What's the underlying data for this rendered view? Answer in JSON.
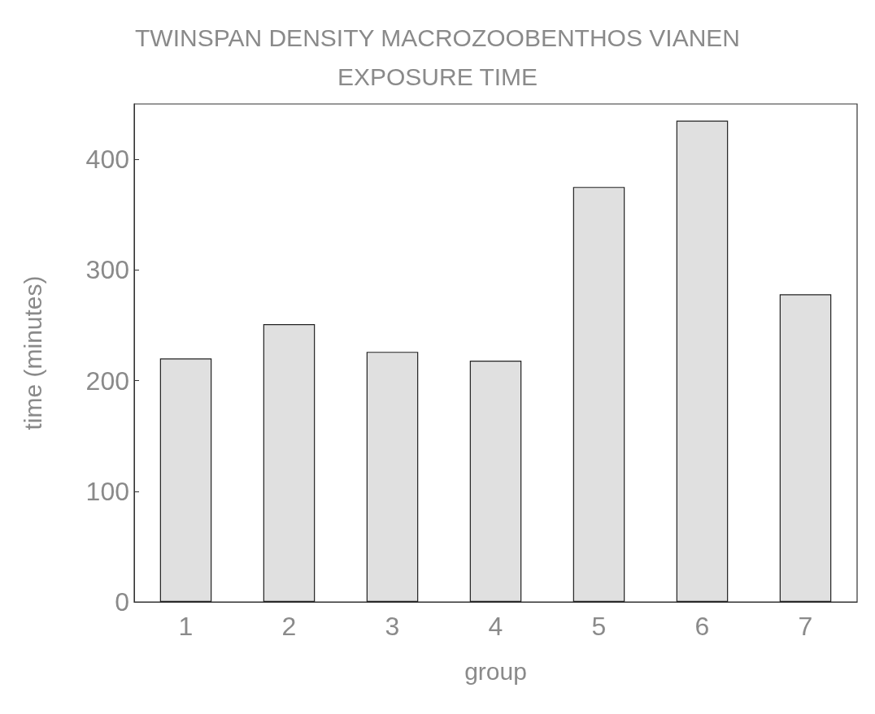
{
  "chart_data": {
    "type": "bar",
    "title": "TWINSPAN DENSITY MACROZOOBENTHOS VIANEN",
    "subtitle": "EXPOSURE TIME",
    "xlabel": "group",
    "ylabel": "time (minutes)",
    "categories": [
      "1",
      "2",
      "3",
      "4",
      "5",
      "6",
      "7"
    ],
    "values": [
      220,
      251,
      226,
      218,
      375,
      435,
      278
    ],
    "color": "#e0e0e0",
    "ylim": [
      0,
      450
    ],
    "yticks": [
      0,
      100,
      200,
      300,
      400
    ],
    "grid": false
  }
}
